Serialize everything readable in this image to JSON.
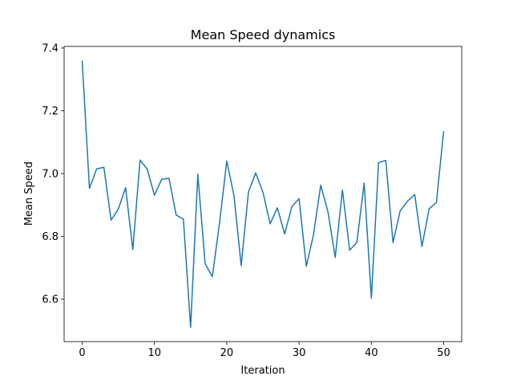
{
  "chart_data": {
    "type": "line",
    "title": "Mean Speed dynamics",
    "xlabel": "Iteration",
    "ylabel": "Mean Speed",
    "xlim": [
      -2.5,
      52.5
    ],
    "ylim": [
      6.465,
      7.405
    ],
    "xticks": [
      0,
      10,
      20,
      30,
      40,
      50
    ],
    "yticks": [
      6.6,
      6.8,
      7.0,
      7.2,
      7.4
    ],
    "ytick_labels": [
      "6.6",
      "6.8",
      "7.0",
      "7.2",
      "7.4"
    ],
    "grid": false,
    "legend": "none",
    "series": [
      {
        "color": "#1f77b4",
        "x": [
          0,
          1,
          2,
          3,
          4,
          5,
          6,
          7,
          8,
          9,
          10,
          11,
          12,
          13,
          14,
          15,
          16,
          17,
          18,
          19,
          20,
          21,
          22,
          23,
          24,
          25,
          26,
          27,
          28,
          29,
          30,
          31,
          32,
          33,
          34,
          35,
          36,
          37,
          38,
          39,
          40,
          41,
          42,
          43,
          44,
          45,
          46,
          47,
          48,
          49,
          50
        ],
        "values": [
          7.36,
          6.953,
          7.015,
          7.02,
          6.852,
          6.887,
          6.955,
          6.758,
          7.043,
          7.014,
          6.931,
          6.982,
          6.985,
          6.868,
          6.855,
          6.51,
          6.998,
          6.713,
          6.672,
          6.843,
          7.04,
          6.93,
          6.707,
          6.942,
          7.002,
          6.941,
          6.84,
          6.891,
          6.808,
          6.895,
          6.92,
          6.705,
          6.805,
          6.963,
          6.878,
          6.733,
          6.948,
          6.756,
          6.781,
          6.97,
          6.603,
          7.035,
          7.042,
          6.78,
          6.882,
          6.912,
          6.933,
          6.768,
          6.888,
          6.908,
          7.135
        ]
      }
    ]
  }
}
